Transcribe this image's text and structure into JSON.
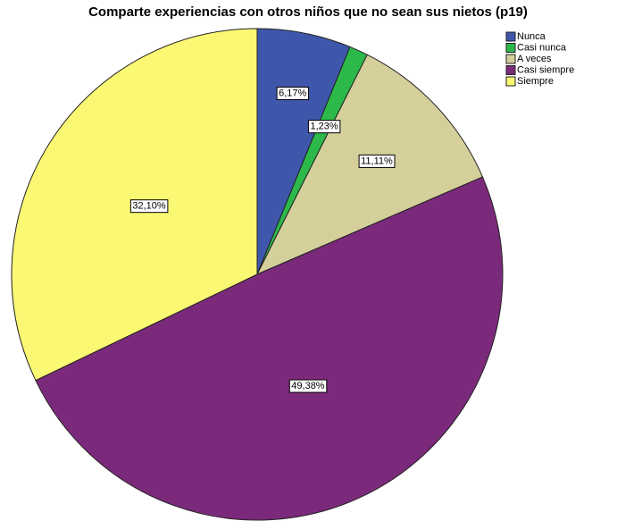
{
  "chart_data": {
    "type": "pie",
    "title": "Comparte experiencias con otros niños que no sean sus nietos (p19)",
    "categories": [
      "Nunca",
      "Casi nunca",
      "A veces",
      "Casi siempre",
      "Siempre"
    ],
    "values": [
      6.17,
      1.23,
      11.11,
      49.38,
      32.1
    ],
    "value_labels": [
      "6,17%",
      "1,23%",
      "11,11%",
      "49,38%",
      "32,10%"
    ],
    "colors": [
      "#3f57ab",
      "#2db94a",
      "#d4cf9b",
      "#7b2a7b",
      "#fbf874"
    ],
    "legend": "top-right"
  }
}
